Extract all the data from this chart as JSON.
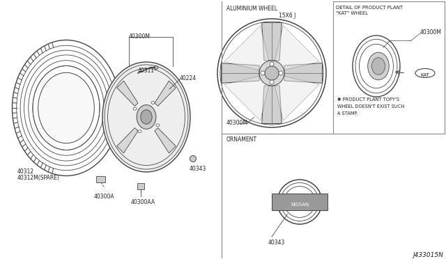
{
  "bg_color": "#ffffff",
  "line_color": "#444444",
  "text_color": "#222222",
  "fig_width": 6.4,
  "fig_height": 3.72,
  "diagram_id": "J433015N",
  "labels": {
    "aluminium_wheel": "ALUMINIUM WHEEL",
    "detail_title1": "DETAIL OF PRODUCT PLANT",
    "detail_title2": "\"KAT\" WHEEL",
    "ornament": "ORNAMENT",
    "size": "15X6 J",
    "kat": "KAT",
    "note1": "✱ PRODUCT PLANT TOPY'S",
    "note2": "WHEEL DOESN'T EXIST SUCH",
    "note3": "A STAMP.",
    "p40300M_a": "40300M",
    "p40300M_b": "40300M",
    "p40300M_c": "40300M",
    "p40311": "40311",
    "p40224": "40224",
    "p40300A": "40300A",
    "p40300AA": "40300AA",
    "p40343_a": "40343",
    "p40343_b": "40343",
    "p40312": "40312",
    "p40312S": "40312M(SPARE)"
  }
}
